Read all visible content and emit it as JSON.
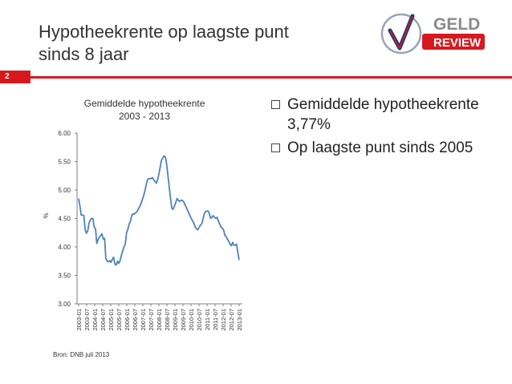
{
  "slide": {
    "title": "Hypotheekrente op laagste punt\nsinds 8 jaar",
    "number": "2",
    "accent_color": "#d7191e",
    "logo": {
      "icon": "checkmark-logo",
      "top_text": "GELD",
      "bottom_text": "REVIEW"
    }
  },
  "bullets": [
    "Gemiddelde hypotheekrente 3,77%",
    "Op laagste punt sinds 2005"
  ],
  "source": "Bron: DNB juli 2013",
  "chart_data": {
    "type": "line",
    "title": "Gemiddelde hypotheekrente",
    "subtitle": "2003 - 2013",
    "ylabel": "%",
    "ylim": [
      3.0,
      6.0
    ],
    "yticks": [
      "3.00",
      "3.50",
      "4.00",
      "4.50",
      "5.00",
      "5.50",
      "6.00"
    ],
    "xticks": [
      "2003-01",
      "2003-07",
      "2004-01",
      "2004-07",
      "2005-01",
      "2005-07",
      "2006-01",
      "2006-07",
      "2007-01",
      "2007-07",
      "2008-01",
      "2008-07",
      "2009-01",
      "2009-07",
      "2010-01",
      "2010-07",
      "2011-01",
      "2011-07",
      "2012-01",
      "2012-07",
      "2013-01"
    ],
    "grid": false,
    "line_color": "#4f81bd",
    "series": [
      {
        "values": [
          4.85,
          4.72,
          4.56,
          4.56,
          4.55,
          4.3,
          4.24,
          4.28,
          4.42,
          4.47,
          4.5,
          4.5,
          4.35,
          4.32,
          4.06,
          4.13,
          4.17,
          4.2,
          4.23,
          4.14,
          4.15,
          3.8,
          3.75,
          3.74,
          3.76,
          3.73,
          3.78,
          3.82,
          3.7,
          3.68,
          3.75,
          3.71,
          3.76,
          3.85,
          3.92,
          4.0,
          4.05,
          4.25,
          4.31,
          4.4,
          4.45,
          4.55,
          4.58,
          4.58,
          4.6,
          4.62,
          4.66,
          4.7,
          4.75,
          4.82,
          4.88,
          4.97,
          5.07,
          5.17,
          5.2,
          5.2,
          5.2,
          5.22,
          5.18,
          5.15,
          5.12,
          5.18,
          5.28,
          5.4,
          5.52,
          5.56,
          5.6,
          5.58,
          5.45,
          5.25,
          5.05,
          4.85,
          4.68,
          4.66,
          4.72,
          4.78,
          4.85,
          4.82,
          4.8,
          4.82,
          4.82,
          4.8,
          4.75,
          4.7,
          4.65,
          4.6,
          4.55,
          4.5,
          4.46,
          4.42,
          4.35,
          4.32,
          4.3,
          4.34,
          4.38,
          4.4,
          4.48,
          4.58,
          4.62,
          4.63,
          4.63,
          4.58,
          4.5,
          4.52,
          4.55,
          4.52,
          4.5,
          4.52,
          4.45,
          4.4,
          4.35,
          4.33,
          4.3,
          4.2,
          4.18,
          4.13,
          4.1,
          4.05,
          4.02,
          4.08,
          4.03,
          4.03,
          4.05,
          3.9,
          3.77
        ]
      }
    ]
  }
}
